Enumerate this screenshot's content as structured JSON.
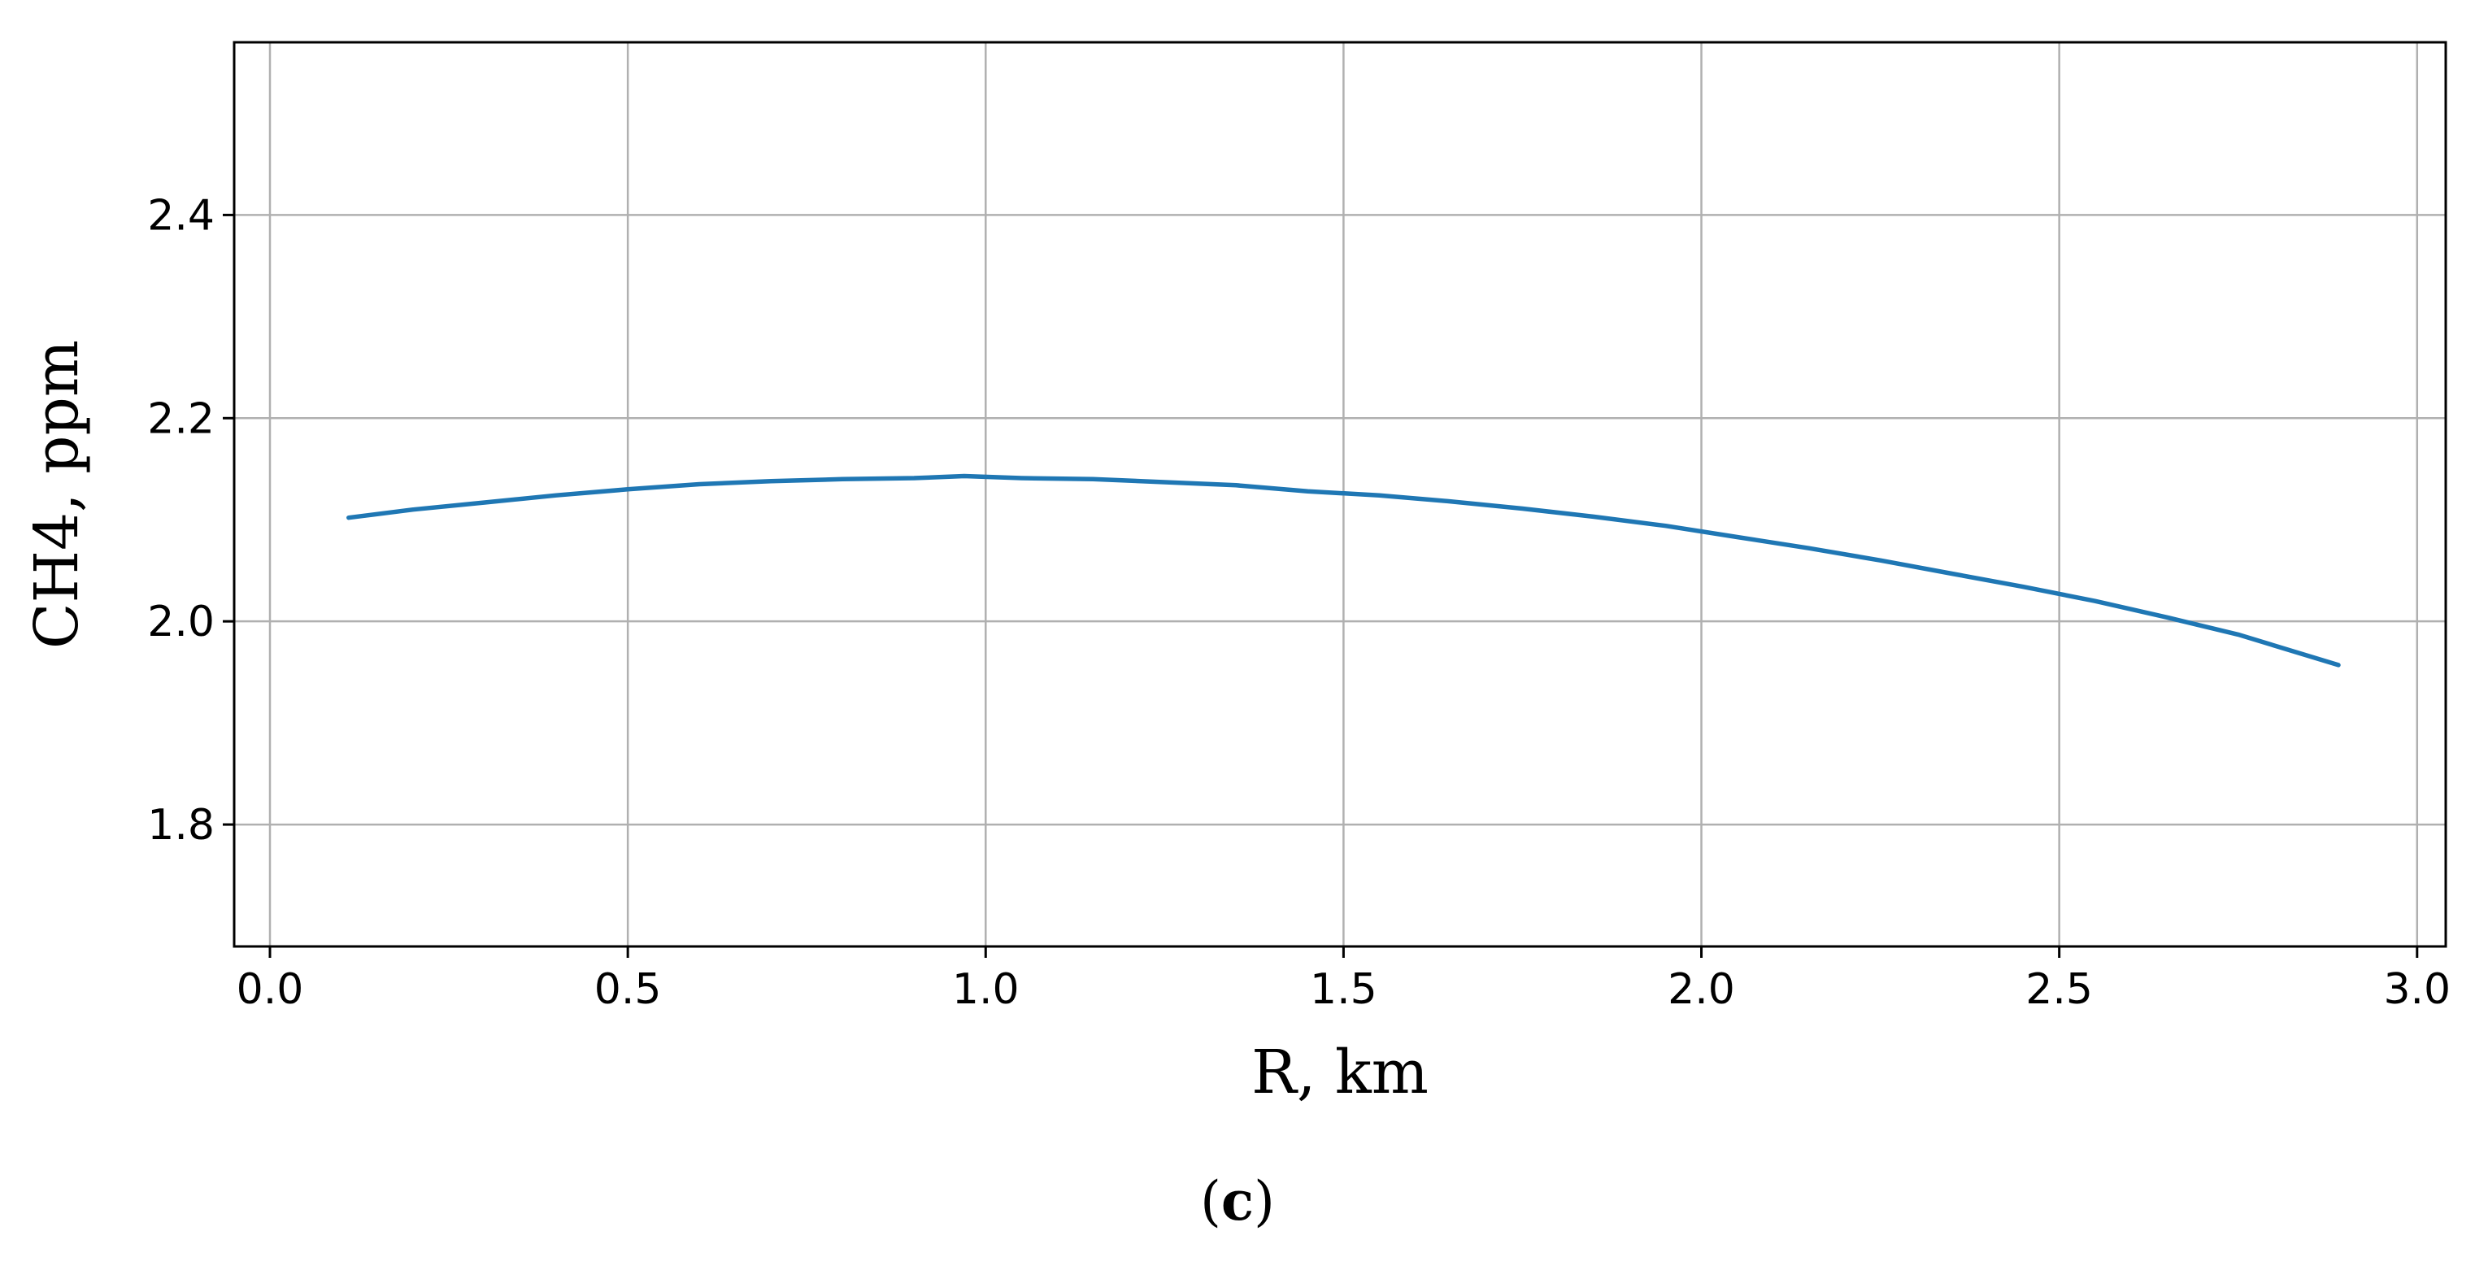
{
  "chart_data": {
    "type": "line",
    "xlabel": "R, km",
    "ylabel": "CH4, ppm",
    "xlim": [
      -0.05,
      3.04
    ],
    "ylim": [
      1.68,
      2.57
    ],
    "xticks": [
      0.0,
      0.5,
      1.0,
      1.5,
      2.0,
      2.5,
      3.0
    ],
    "xtick_labels": [
      "0.0",
      "0.5",
      "1.0",
      "1.5",
      "2.0",
      "2.5",
      "3.0"
    ],
    "yticks": [
      1.8,
      2.0,
      2.2,
      2.4
    ],
    "ytick_labels": [
      "1.8",
      "2.0",
      "2.2",
      "2.4"
    ],
    "grid": true,
    "series": [
      {
        "color": "#1f77b4",
        "x": [
          0.11,
          0.2,
          0.3,
          0.4,
          0.5,
          0.6,
          0.7,
          0.8,
          0.9,
          0.97,
          1.05,
          1.15,
          1.25,
          1.35,
          1.45,
          1.55,
          1.65,
          1.75,
          1.85,
          1.95,
          2.05,
          2.15,
          2.25,
          2.35,
          2.45,
          2.55,
          2.65,
          2.75,
          2.89
        ],
        "y": [
          2.102,
          2.11,
          2.117,
          2.124,
          2.13,
          2.135,
          2.138,
          2.14,
          2.141,
          2.143,
          2.141,
          2.14,
          2.137,
          2.134,
          2.128,
          2.124,
          2.118,
          2.111,
          2.103,
          2.094,
          2.083,
          2.072,
          2.06,
          2.047,
          2.034,
          2.02,
          2.004,
          1.987,
          1.957
        ]
      }
    ]
  },
  "caption": {
    "open": "(",
    "letter": "c",
    "close": ")"
  }
}
